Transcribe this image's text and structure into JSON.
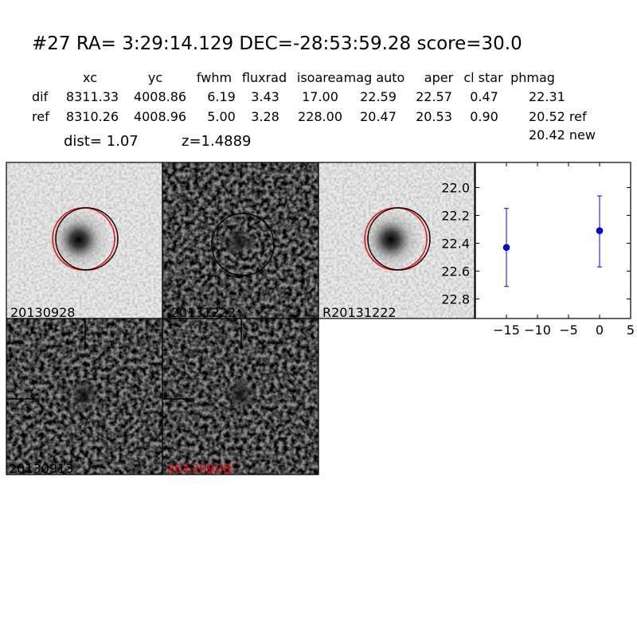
{
  "title": "#27   RA= 3:29:14.129 DEC=-28:53:59.28      score=30.0",
  "table": {
    "headers": [
      "xc",
      "yc",
      "fwhm",
      "fluxrad",
      "isoarea",
      "mag auto",
      "aper",
      "cl star",
      "phmag"
    ],
    "rows": [
      {
        "label": "dif",
        "values": [
          "8311.33",
          "4008.86",
          "6.19",
          "3.43",
          "17.00",
          "22.59",
          "22.57",
          "0.47",
          "22.31"
        ]
      },
      {
        "label": "ref",
        "values": [
          "8310.26",
          "4008.96",
          "5.00",
          "3.28",
          "228.00",
          "20.47",
          "20.53",
          "0.90",
          "20.52 ref"
        ]
      }
    ],
    "extra_phmag": "20.42 new",
    "dist": "dist=  1.07",
    "z": "z=1.4889"
  },
  "panels": [
    {
      "label": "20130928",
      "label_color": "#000000",
      "circles": [
        "#ff0000",
        "#000000"
      ]
    },
    {
      "label": "-20131222",
      "label_color": "#000000",
      "circles": [
        "#000000"
      ]
    },
    {
      "label": "R20131222",
      "label_color": "#000000",
      "circles": [
        "#ff0000",
        "#000000"
      ]
    },
    {
      "label": "20130913",
      "label_color": "#000000",
      "crosshair": true
    },
    {
      "label": "20130928",
      "label_color": "#ff0000",
      "crosshair": true
    }
  ],
  "chart_data": {
    "type": "scatter",
    "xlim": [
      -20,
      5
    ],
    "ylim": [
      22.94,
      21.82
    ],
    "y_inverted": true,
    "xticks": [
      "−15",
      "−10",
      "−5",
      "0",
      "5"
    ],
    "xtick_values": [
      -15,
      -10,
      -5,
      0,
      5
    ],
    "yticks": [
      "22.0",
      "22.2",
      "22.4",
      "22.6",
      "22.8"
    ],
    "ytick_values": [
      22.0,
      22.2,
      22.4,
      22.6,
      22.8
    ],
    "points": [
      {
        "x": -15,
        "y": 22.43,
        "err_low": 22.71,
        "err_high": 22.15
      },
      {
        "x": 0,
        "y": 22.31,
        "err_low": 22.57,
        "err_high": 22.06
      }
    ],
    "color": "#0000ff"
  }
}
